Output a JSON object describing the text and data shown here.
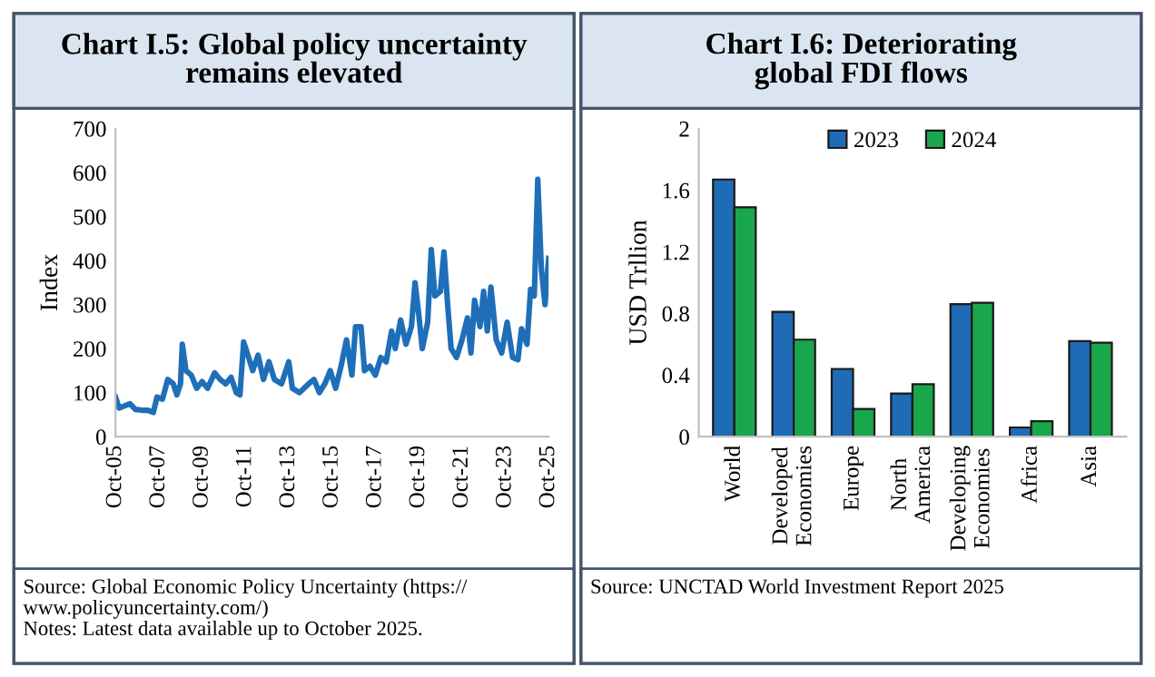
{
  "chart_data": [
    {
      "type": "line",
      "title": "Chart I.5: Global policy uncertainty\nremains elevated",
      "ylabel": "Index",
      "xlim": [
        "2005-10",
        "2025-10"
      ],
      "ylim": [
        0,
        700
      ],
      "xticks": [
        {
          "value": "2005-10",
          "label": "Oct-05"
        },
        {
          "value": "2007-10",
          "label": "Oct-07"
        },
        {
          "value": "2009-10",
          "label": "Oct-09"
        },
        {
          "value": "2011-10",
          "label": "Oct-11"
        },
        {
          "value": "2013-10",
          "label": "Oct-13"
        },
        {
          "value": "2015-10",
          "label": "Oct-15"
        },
        {
          "value": "2017-10",
          "label": "Oct-17"
        },
        {
          "value": "2019-10",
          "label": "Oct-19"
        },
        {
          "value": "2021-10",
          "label": "Oct-21"
        },
        {
          "value": "2023-10",
          "label": "Oct-23"
        },
        {
          "value": "2025-10",
          "label": "Oct-25"
        }
      ],
      "yticks": [
        0,
        100,
        200,
        300,
        400,
        500,
        600,
        700
      ],
      "x": [
        "2005-10",
        "2005-12",
        "2006-03",
        "2006-06",
        "2006-09",
        "2007-01",
        "2007-04",
        "2007-07",
        "2007-09",
        "2007-12",
        "2008-03",
        "2008-06",
        "2008-08",
        "2008-10",
        "2008-11",
        "2009-01",
        "2009-04",
        "2009-07",
        "2009-10",
        "2010-01",
        "2010-05",
        "2010-08",
        "2010-11",
        "2011-02",
        "2011-05",
        "2011-07",
        "2011-09",
        "2011-11",
        "2012-02",
        "2012-05",
        "2012-08",
        "2012-11",
        "2013-02",
        "2013-06",
        "2013-10",
        "2013-12",
        "2014-04",
        "2014-09",
        "2014-12",
        "2015-03",
        "2015-06",
        "2015-09",
        "2015-12",
        "2016-03",
        "2016-06",
        "2016-09",
        "2016-11",
        "2017-02",
        "2017-04",
        "2017-07",
        "2017-10",
        "2018-01",
        "2018-04",
        "2018-07",
        "2018-09",
        "2018-12",
        "2019-03",
        "2019-06",
        "2019-08",
        "2019-10",
        "2019-12",
        "2020-03",
        "2020-05",
        "2020-07",
        "2020-10",
        "2020-12",
        "2021-02",
        "2021-04",
        "2021-07",
        "2021-10",
        "2022-01",
        "2022-03",
        "2022-05",
        "2022-08",
        "2022-10",
        "2022-12",
        "2023-02",
        "2023-05",
        "2023-08",
        "2023-11",
        "2024-02",
        "2024-05",
        "2024-07",
        "2024-10",
        "2024-12",
        "2025-02",
        "2025-04",
        "2025-06",
        "2025-08",
        "2025-10"
      ],
      "series": [
        {
          "color": "#1f6fb8",
          "values": [
            90,
            65,
            70,
            75,
            62,
            60,
            60,
            55,
            90,
            85,
            130,
            120,
            95,
            120,
            210,
            150,
            140,
            110,
            125,
            110,
            145,
            130,
            120,
            135,
            100,
            95,
            215,
            190,
            150,
            185,
            130,
            170,
            130,
            120,
            170,
            110,
            100,
            120,
            130,
            100,
            120,
            150,
            110,
            160,
            220,
            140,
            250,
            250,
            150,
            160,
            140,
            180,
            170,
            240,
            200,
            265,
            210,
            250,
            350,
            280,
            200,
            260,
            425,
            320,
            330,
            420,
            300,
            200,
            180,
            220,
            270,
            190,
            310,
            250,
            330,
            240,
            340,
            220,
            190,
            260,
            180,
            175,
            245,
            210,
            335,
            320,
            585,
            380,
            300,
            405
          ]
        }
      ],
      "annotations": [
        "Source: Global Economic Policy Uncertainty (https://\nwww.policyuncertainty.com/)",
        "Notes: Latest data available up to October 2025."
      ]
    },
    {
      "type": "bar",
      "title": "Chart I.6: Deteriorating\nglobal FDI flows",
      "ylabel": "USD Trllion",
      "categories": [
        "World",
        "Developed\nEconomies",
        "Europe",
        "North\nAmerica",
        "Developing\nEconomies",
        "Africa",
        "Asia"
      ],
      "ylim": [
        0,
        2
      ],
      "yticks": [
        0,
        0.4,
        0.8,
        1.2,
        1.6,
        2
      ],
      "legend": "top",
      "series": [
        {
          "name": "2023",
          "color": "#1f6bb5",
          "values": [
            1.67,
            0.81,
            0.44,
            0.28,
            0.86,
            0.06,
            0.62
          ]
        },
        {
          "name": "2024",
          "color": "#1aa64a",
          "values": [
            1.49,
            0.63,
            0.18,
            0.34,
            0.87,
            0.1,
            0.61
          ]
        }
      ],
      "annotations": [
        "Source: UNCTAD World Investment Report 2025"
      ]
    }
  ]
}
